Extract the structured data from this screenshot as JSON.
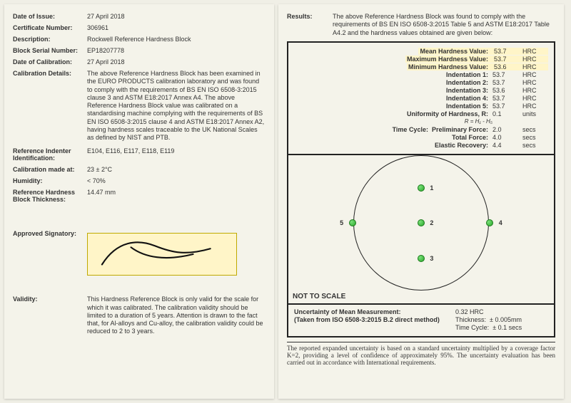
{
  "left": {
    "fields": {
      "date_of_issue": {
        "label": "Date of Issue:",
        "value": "27 April 2018"
      },
      "cert_no": {
        "label": "Certificate Number:",
        "value": "306961"
      },
      "description": {
        "label": "Description:",
        "value": "Rockwell Reference Hardness Block"
      },
      "serial": {
        "label": "Block Serial Number:",
        "value": "EP18207778"
      },
      "calib_date": {
        "label": "Date of Calibration:",
        "value": "27 April 2018"
      },
      "details": {
        "label": "Calibration Details:",
        "value": "The above Reference Hardness Block has been examined in the EURO PRODUCTS calibration laboratory and was found to comply with the requirements of BS EN ISO 6508-3:2015 clause 3 and ASTM E18:2017 Annex A4. The above Reference Hardness Block value was calibrated on a standardising machine complying with the requirements of BS EN ISO 6508-3:2015 clause 4 and ASTM E18:2017 Annex A2, having hardness scales traceable to the UK National Scales as defined by NIST and PTB."
      },
      "indenter": {
        "label": "Reference Indenter Identification:",
        "value": "E104, E116, E117, E118, E119"
      },
      "calib_at": {
        "label": "Calibration made at:",
        "value": "23 ± 2°C"
      },
      "humidity": {
        "label": "Humidity:",
        "value": "< 70%"
      },
      "thickness": {
        "label": "Reference Hardness Block Thickness:",
        "value": "14.47 mm"
      },
      "signatory": {
        "label": "Approved Signatory:"
      },
      "validity": {
        "label": "Validity:",
        "value": "This Hardness Reference Block is only valid for the scale for which it was calibrated. The calibration validity should be limited to a duration of 5 years. Attention is drawn to the fact that, for Al-alloys and Cu-alloy, the calibration validity could be reduced to 2 to 3 years."
      }
    }
  },
  "right": {
    "results_label": "Results:",
    "results_text": "The above Reference Hardness Block was found to comply with the requirements of BS EN ISO 6508-3:2015 Table 5 and ASTM E18:2017 Table A4.2 and the hardness values obtained are given below:",
    "hardness": {
      "mean": {
        "label": "Mean Hardness Value:",
        "value": "53.7",
        "unit": "HRC"
      },
      "max": {
        "label": "Maximum Hardness Value:",
        "value": "53.7",
        "unit": "HRC"
      },
      "min": {
        "label": "Minimum Hardness Value:",
        "value": "53.6",
        "unit": "HRC"
      },
      "indent": [
        {
          "label": "Indentation 1:",
          "value": "53.7",
          "unit": "HRC"
        },
        {
          "label": "Indentation 2:",
          "value": "53.7",
          "unit": "HRC"
        },
        {
          "label": "Indentation 3:",
          "value": "53.6",
          "unit": "HRC"
        },
        {
          "label": "Indentation 4:",
          "value": "53.7",
          "unit": "HRC"
        },
        {
          "label": "Indentation 5:",
          "value": "53.7",
          "unit": "HRC"
        }
      ],
      "uniformity": {
        "label": "Uniformity of Hardness, R:",
        "value": "0.1",
        "unit": "units"
      },
      "formula": "R = H₁ - H₅",
      "time_cycle_label": "Time Cycle:",
      "prelim": {
        "label": "Preliminary Force:",
        "value": "2.0",
        "unit": "secs"
      },
      "total": {
        "label": "Total Force:",
        "value": "4.0",
        "unit": "secs"
      },
      "elastic": {
        "label": "Elastic Recovery:",
        "value": "4.4",
        "unit": "secs"
      }
    },
    "points": [
      {
        "n": "1",
        "x": 50,
        "y": 14
      },
      {
        "n": "2",
        "x": 50,
        "y": 50
      },
      {
        "n": "3",
        "x": 50,
        "y": 86
      },
      {
        "n": "4",
        "x": 86,
        "y": 50
      },
      {
        "n": "5",
        "x": 14,
        "y": 50
      }
    ],
    "not_to_scale": "NOT TO SCALE",
    "uncertainty": {
      "mean": {
        "label": "Uncertainty of Mean Measurement:",
        "value": "0.32 HRC"
      },
      "method": "(Taken from ISO 6508-3:2015 B.2 direct method)",
      "thickness": {
        "label": "Thickness:",
        "value": "± 0.005mm"
      },
      "timecycle": {
        "label": "Time Cycle:",
        "value": "± 0.1 secs"
      }
    },
    "footnote": "The reported expanded uncertainty is based on a standard uncertainty multiplied by a coverage factor K=2, providing a level of confidence of approximately 95%. The uncertainty evaluation has been carried out in accordance with International requirements."
  },
  "colors": {
    "page_bg": "#f4f3ea",
    "highlight": "#fff5c8",
    "border": "#222222",
    "point_fill": "#2aa82a"
  }
}
